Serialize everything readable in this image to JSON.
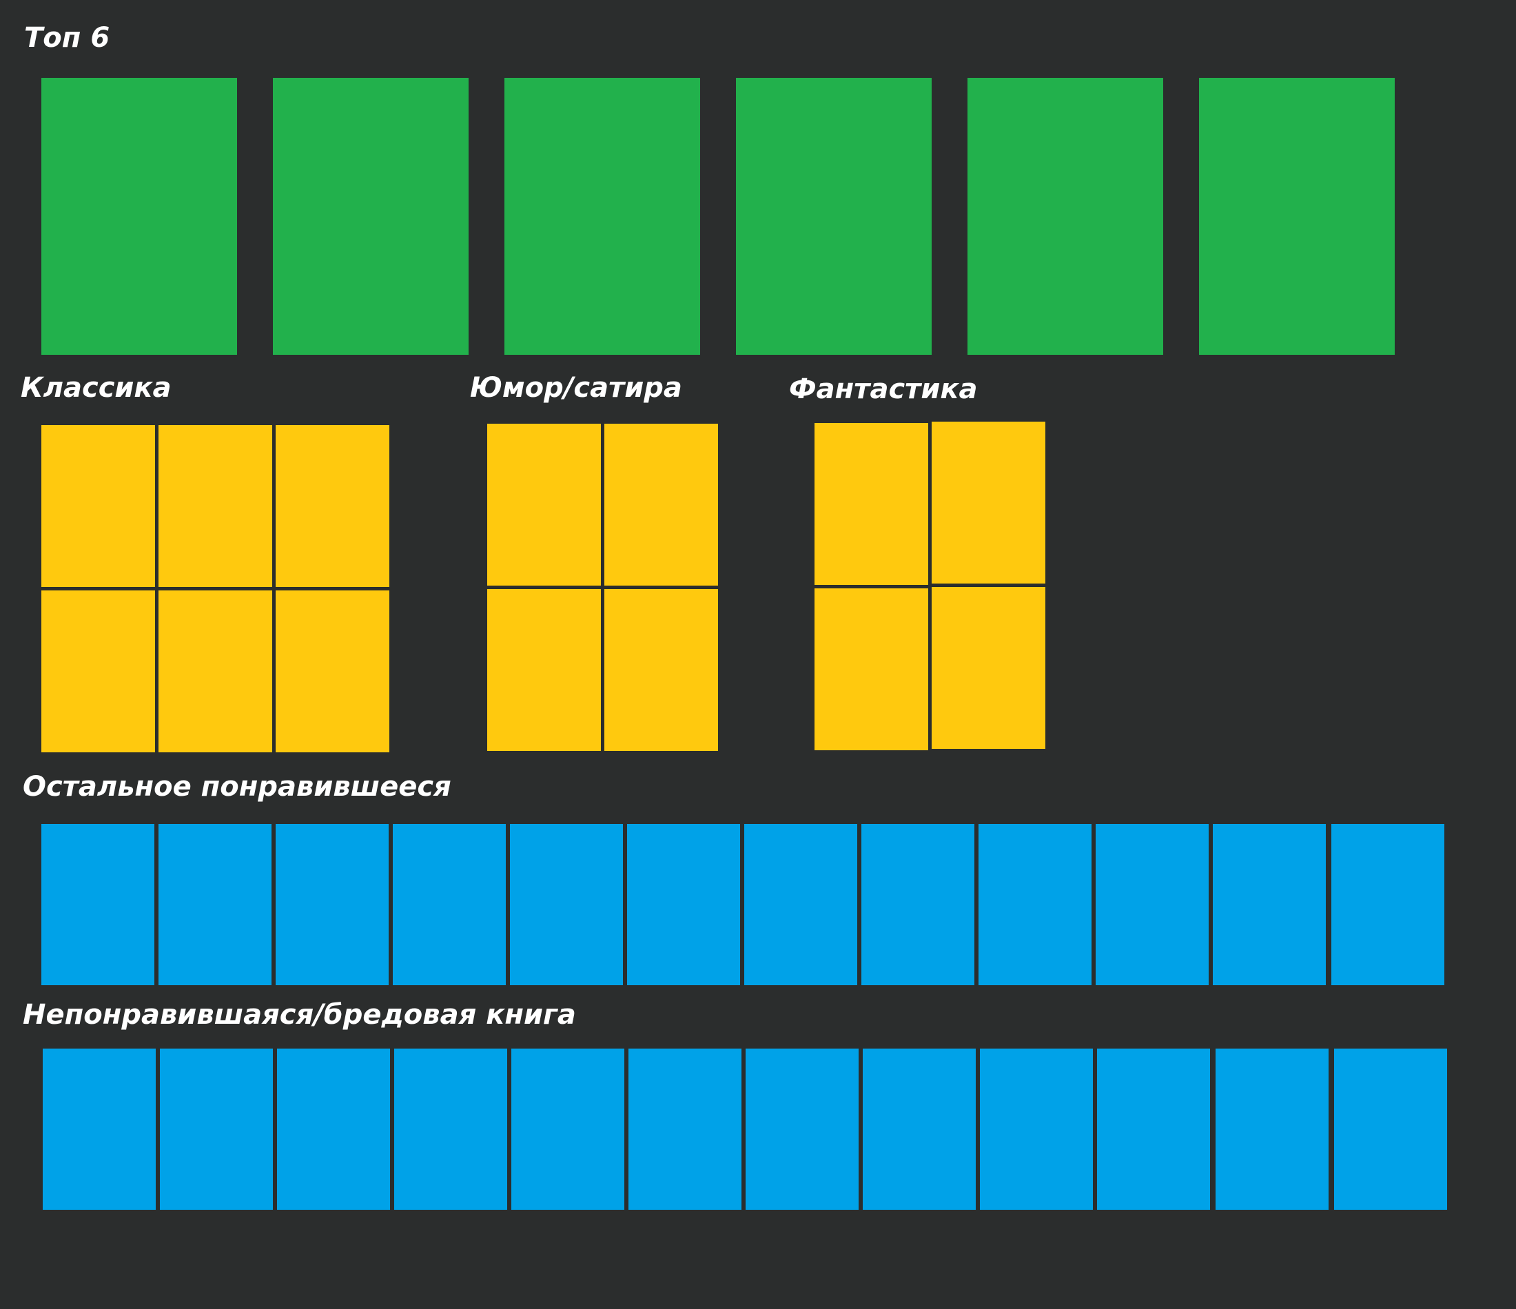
{
  "colors": {
    "background": "#2b2d2d",
    "top": "#22b14c",
    "genre": "#ffc90e",
    "other": "#00a2e8",
    "text": "#ffffff"
  },
  "sections": {
    "top": {
      "title": "Топ 6",
      "count": 6
    },
    "classics": {
      "title": "Классика",
      "count": 6
    },
    "humor": {
      "title": "Юмор/сатира",
      "count": 4
    },
    "fantasy": {
      "title": "Фантастика",
      "count": 4
    },
    "liked": {
      "title": "Остальное понравившееся",
      "count": 12
    },
    "disliked": {
      "title": "Непонравившаяся/бредовая книга",
      "count": 12
    }
  }
}
